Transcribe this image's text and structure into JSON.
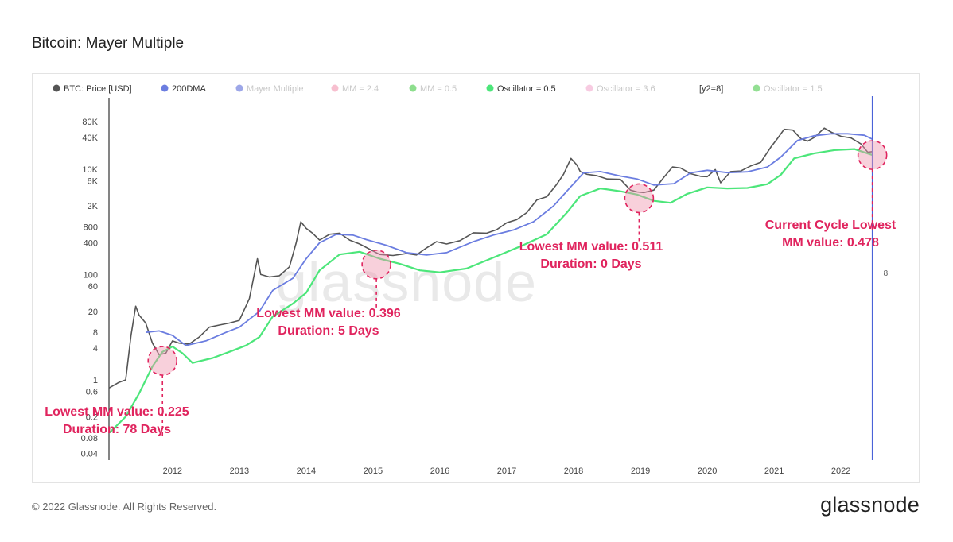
{
  "title": "Bitcoin: Mayer Multiple",
  "footer": {
    "copyright": "© 2022 Glassnode. All Rights Reserved.",
    "logo": "glassnode"
  },
  "watermark": "glassnode",
  "colors": {
    "price": "#555555",
    "dma": "#6b7de0",
    "mayer": "#4d5fd6",
    "mm24": "#f08aa8",
    "mm05": "#2fc22f",
    "osc05": "#4ce67a",
    "osc36": "#f0a0c8",
    "osc15": "#3bc43b",
    "annotation": "#e0245e",
    "vline": "#4a63d8"
  },
  "chart_data": {
    "type": "line",
    "title": "Bitcoin: Mayer Multiple",
    "xlabel": "",
    "ylabel": "",
    "yscale": "log",
    "ylim": [
      0.03,
      160000
    ],
    "xlim": [
      2011.05,
      2022.95
    ],
    "x_ticks": [
      "2012",
      "2013",
      "2014",
      "2015",
      "2016",
      "2017",
      "2018",
      "2019",
      "2020",
      "2021",
      "2022"
    ],
    "y_ticks": [
      "80K",
      "40K",
      "10K",
      "6K",
      "2K",
      "800",
      "400",
      "100",
      "60",
      "20",
      "8",
      "4",
      "1",
      "0.6",
      "0.2",
      "0.08",
      "0.04"
    ],
    "y_tick_values": [
      80000,
      40000,
      10000,
      6000,
      2000,
      800,
      400,
      100,
      60,
      20,
      8,
      4,
      1,
      0.6,
      0.2,
      0.08,
      0.04
    ],
    "legend": [
      {
        "label": "BTC: Price [USD]",
        "color": "#555555",
        "active": true
      },
      {
        "label": "200DMA",
        "color": "#6b7de0",
        "active": true
      },
      {
        "label": "Mayer Multiple",
        "color": "#4d5fd6",
        "active": false
      },
      {
        "label": "MM = 2.4",
        "color": "#f08aa8",
        "active": false
      },
      {
        "label": "MM = 0.5",
        "color": "#2fc22f",
        "active": false
      },
      {
        "label": "Oscillator = 0.5",
        "color": "#4ce67a",
        "active": true
      },
      {
        "label": "Oscillator = 3.6",
        "color": "#f0a0c8",
        "active": false
      },
      {
        "label": "[y2=8]",
        "color": null,
        "active": true
      },
      {
        "label": "Oscillator = 1.5",
        "color": "#3bc43b",
        "active": false
      }
    ],
    "legend_position": "top",
    "y2_label": "8",
    "current_date": 2022.47,
    "series": [
      {
        "name": "BTC: Price [USD]",
        "x": [
          2011.05,
          2011.2,
          2011.3,
          2011.38,
          2011.45,
          2011.5,
          2011.6,
          2011.7,
          2011.8,
          2011.9,
          2012.0,
          2012.1,
          2012.25,
          2012.4,
          2012.55,
          2012.7,
          2012.85,
          2013.0,
          2013.15,
          2013.27,
          2013.32,
          2013.45,
          2013.6,
          2013.75,
          2013.85,
          2013.92,
          2014.0,
          2014.1,
          2014.2,
          2014.35,
          2014.5,
          2014.65,
          2014.8,
          2015.0,
          2015.1,
          2015.3,
          2015.5,
          2015.65,
          2015.8,
          2015.95,
          2016.1,
          2016.3,
          2016.5,
          2016.7,
          2016.85,
          2017.0,
          2017.15,
          2017.3,
          2017.45,
          2017.6,
          2017.75,
          2017.85,
          2017.96,
          2018.05,
          2018.1,
          2018.2,
          2018.35,
          2018.5,
          2018.7,
          2018.85,
          2018.95,
          2019.05,
          2019.2,
          2019.35,
          2019.48,
          2019.6,
          2019.75,
          2019.9,
          2020.0,
          2020.12,
          2020.2,
          2020.35,
          2020.5,
          2020.65,
          2020.8,
          2020.95,
          2021.05,
          2021.15,
          2021.28,
          2021.4,
          2021.5,
          2021.6,
          2021.75,
          2021.86,
          2022.0,
          2022.15,
          2022.3,
          2022.4,
          2022.47
        ],
        "values": [
          0.7,
          0.9,
          1.0,
          7,
          25,
          17,
          12,
          5,
          3,
          3.2,
          5.5,
          5,
          4.8,
          6.5,
          10,
          11,
          12,
          13.5,
          35,
          200,
          100,
          90,
          95,
          140,
          400,
          1000,
          750,
          600,
          450,
          580,
          610,
          450,
          380,
          280,
          240,
          230,
          250,
          235,
          320,
          420,
          380,
          440,
          620,
          610,
          710,
          960,
          1100,
          1500,
          2600,
          3000,
          5200,
          8000,
          16000,
          12000,
          9000,
          8000,
          7500,
          6500,
          6400,
          4000,
          3700,
          3600,
          4000,
          7000,
          11000,
          10500,
          8200,
          7300,
          7200,
          9800,
          5500,
          9000,
          9200,
          11500,
          13500,
          26000,
          38000,
          57000,
          55000,
          38000,
          34000,
          40000,
          60000,
          50000,
          42000,
          39000,
          30000,
          21000,
          21500
        ]
      },
      {
        "name": "200DMA",
        "x": [
          2011.6,
          2011.8,
          2012.0,
          2012.2,
          2012.5,
          2012.8,
          2013.0,
          2013.3,
          2013.5,
          2013.8,
          2014.0,
          2014.2,
          2014.45,
          2014.7,
          2014.9,
          2015.2,
          2015.5,
          2015.8,
          2016.1,
          2016.5,
          2016.8,
          2017.1,
          2017.4,
          2017.7,
          2017.95,
          2018.15,
          2018.4,
          2018.7,
          2018.95,
          2019.2,
          2019.5,
          2019.75,
          2020.0,
          2020.3,
          2020.6,
          2020.9,
          2021.1,
          2021.35,
          2021.6,
          2021.85,
          2022.1,
          2022.35,
          2022.47
        ],
        "values": [
          8,
          8.5,
          7,
          4.5,
          5.5,
          8,
          10,
          20,
          50,
          85,
          200,
          400,
          580,
          560,
          460,
          360,
          260,
          235,
          260,
          420,
          560,
          700,
          1000,
          2000,
          4500,
          8500,
          9000,
          7400,
          6500,
          5000,
          5300,
          8500,
          9500,
          8600,
          8900,
          11000,
          17000,
          35000,
          43000,
          47000,
          47000,
          44000,
          37000
        ]
      },
      {
        "name": "Oscillator = 0.5",
        "x": [
          2011.06,
          2011.3,
          2011.5,
          2011.7,
          2011.85,
          2012.0,
          2012.15,
          2012.3,
          2012.6,
          2012.9,
          2013.1,
          2013.3,
          2013.5,
          2013.8,
          2014.0,
          2014.2,
          2014.5,
          2014.8,
          2015.1,
          2015.4,
          2015.7,
          2016.0,
          2016.4,
          2016.8,
          2017.2,
          2017.6,
          2017.9,
          2018.1,
          2018.4,
          2018.7,
          2018.95,
          2019.2,
          2019.45,
          2019.7,
          2020.0,
          2020.3,
          2020.6,
          2020.9,
          2021.1,
          2021.3,
          2021.6,
          2021.9,
          2022.2,
          2022.47
        ],
        "values": [
          0.1,
          0.2,
          0.55,
          1.8,
          3.4,
          4.3,
          3.2,
          2.1,
          2.6,
          3.6,
          4.5,
          6.5,
          16,
          28,
          45,
          120,
          240,
          270,
          200,
          160,
          120,
          110,
          130,
          210,
          340,
          580,
          1500,
          3100,
          4300,
          3800,
          3300,
          2500,
          2300,
          3400,
          4500,
          4300,
          4400,
          5200,
          7800,
          16000,
          20000,
          23000,
          24000,
          18500
        ]
      }
    ],
    "annotations": [
      {
        "x": 2011.85,
        "y": 2.3,
        "line1": "Lowest MM value: 0.225",
        "line2": "Duration: 78 Days"
      },
      {
        "x": 2015.05,
        "y": 155,
        "line1": "Lowest MM value: 0.396",
        "line2": "Duration: 5 Days"
      },
      {
        "x": 2018.98,
        "y": 2800,
        "line1": "Lowest MM value: 0.511",
        "line2": "Duration: 0 Days"
      },
      {
        "x": 2022.47,
        "y": 18500,
        "line1": "Current Cycle Lowest",
        "line2": "MM value: 0.478"
      }
    ]
  }
}
